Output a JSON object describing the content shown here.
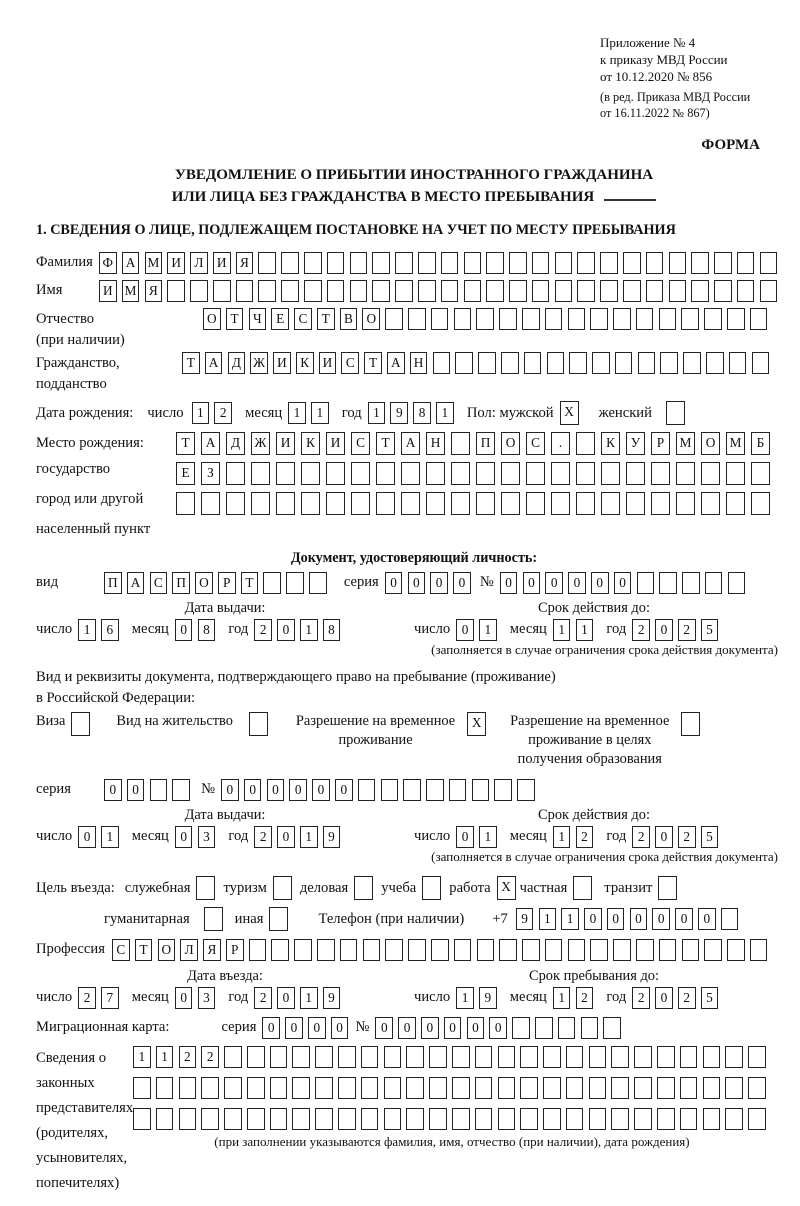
{
  "header": {
    "appendix_lines": [
      "Приложение № 4",
      "к приказу МВД России",
      "от 10.12.2020 № 856"
    ],
    "amendment_lines": [
      "(в ред. Приказа МВД России",
      "от 16.11.2022 № 867)"
    ],
    "form_label": "ФОРМА"
  },
  "title": {
    "line1": "УВЕДОМЛЕНИЕ О ПРИБЫТИИ ИНОСТРАННОГО ГРАЖДАНИНА",
    "line2": "ИЛИ ЛИЦА БЕЗ ГРАЖДАНСТВА В МЕСТО ПРЕБЫВАНИЯ"
  },
  "section1_heading": "1. СВЕДЕНИЯ О ЛИЦЕ, ПОДЛЕЖАЩЕМ ПОСТАНОВКЕ НА УЧЕТ ПО МЕСТУ ПРЕБЫВАНИЯ",
  "person": {
    "surname_label": "Фамилия",
    "surname": {
      "count": 30,
      "value": "ФАМИЛИЯ"
    },
    "name_label": "Имя",
    "name": {
      "count": 30,
      "value": "ИМЯ"
    },
    "patronymic_label": "Отчество",
    "patronymic_note": "(при наличии)",
    "patronymic": {
      "count": 25,
      "value": "ОТЧЕСТВО"
    },
    "citizenship_label_line1": "Гражданство,",
    "citizenship_label_line2": "подданство",
    "citizenship": {
      "count": 26,
      "value": "ТАДЖИКИСТАН"
    },
    "birth_date_label": "Дата рождения:",
    "birth_day": {
      "count": 2,
      "value": "12"
    },
    "birth_month": {
      "count": 2,
      "value": "11"
    },
    "birth_year": {
      "count": 4,
      "value": "1981"
    },
    "sex_male_label": "Пол: мужской",
    "sex_male": {
      "count": 1,
      "value": "X"
    },
    "sex_female_label": "женский",
    "sex_female": {
      "count": 1,
      "value": ""
    },
    "birthplace_label_lines": [
      "Место рождения:",
      "государство",
      "город или другой",
      "населенный пункт"
    ],
    "birthplace_rows": [
      {
        "count": 24,
        "value": "ТАДЖИКИСТАН ПОС. КУРМОМБ"
      },
      {
        "count": 24,
        "value": "ЕЗ"
      },
      {
        "count": 24,
        "value": ""
      }
    ]
  },
  "identity_doc": {
    "heading": "Документ, удостоверяющий личность:",
    "type_label": "вид",
    "type": {
      "count": 10,
      "value": "ПАСПОРТ"
    },
    "series_label": "серия",
    "series": {
      "count": 4,
      "value": "0000"
    },
    "number_label": "№",
    "number": {
      "count": 11,
      "value": "000000"
    }
  },
  "dates": {
    "day_label": "число",
    "month_label": "месяц",
    "year_label": "год",
    "issue_heading": "Дата выдачи:",
    "expiry_heading": "Срок действия до:",
    "entry_heading": "Дата въезда:",
    "stay_heading": "Срок пребывания до:",
    "restriction_note": "(заполняется в случае ограничения срока действия документа)",
    "passport_issue": {
      "day": {
        "count": 2,
        "value": "16"
      },
      "month": {
        "count": 2,
        "value": "08"
      },
      "year": {
        "count": 4,
        "value": "2018"
      }
    },
    "passport_expiry": {
      "day": {
        "count": 2,
        "value": "01"
      },
      "month": {
        "count": 2,
        "value": "11"
      },
      "year": {
        "count": 4,
        "value": "2025"
      }
    },
    "permit_issue": {
      "day": {
        "count": 2,
        "value": "01"
      },
      "month": {
        "count": 2,
        "value": "03"
      },
      "year": {
        "count": 4,
        "value": "2019"
      }
    },
    "permit_expiry": {
      "day": {
        "count": 2,
        "value": "01"
      },
      "month": {
        "count": 2,
        "value": "12"
      },
      "year": {
        "count": 4,
        "value": "2025"
      }
    },
    "entry_date": {
      "day": {
        "count": 2,
        "value": "27"
      },
      "month": {
        "count": 2,
        "value": "03"
      },
      "year": {
        "count": 4,
        "value": "2019"
      }
    },
    "stay_until": {
      "day": {
        "count": 2,
        "value": "19"
      },
      "month": {
        "count": 2,
        "value": "12"
      },
      "year": {
        "count": 4,
        "value": "2025"
      }
    }
  },
  "permit_doc": {
    "intro_line1": "Вид и реквизиты документа, подтверждающего право на пребывание (проживание)",
    "intro_line2": "в Российской Федерации:",
    "options": [
      {
        "label_lines": [
          "Виза"
        ],
        "box": {
          "count": 1,
          "value": ""
        }
      },
      {
        "label_lines": [
          "Вид на жительство"
        ],
        "box": {
          "count": 1,
          "value": ""
        }
      },
      {
        "label_lines": [
          "Разрешение на временное",
          "проживание"
        ],
        "box": {
          "count": 1,
          "value": "X"
        }
      },
      {
        "label_lines": [
          "Разрешение на временное",
          "проживание в целях",
          "получения образования"
        ],
        "box": {
          "count": 1,
          "value": ""
        }
      }
    ],
    "series_label": "серия",
    "series": {
      "count": 4,
      "value": "00"
    },
    "number_label": "№",
    "number": {
      "count": 14,
      "value": "000000"
    }
  },
  "visit": {
    "purpose_heading": "Цель въезда:",
    "purposes": [
      {
        "label": "служебная",
        "box": {
          "count": 1,
          "value": ""
        }
      },
      {
        "label": "туризм",
        "box": {
          "count": 1,
          "value": ""
        }
      },
      {
        "label": "деловая",
        "box": {
          "count": 1,
          "value": ""
        }
      },
      {
        "label": "учеба",
        "box": {
          "count": 1,
          "value": ""
        }
      },
      {
        "label": "работа",
        "box": {
          "count": 1,
          "value": "X"
        }
      },
      {
        "label": "частная",
        "box": {
          "count": 1,
          "value": ""
        }
      },
      {
        "label": "транзит",
        "box": {
          "count": 1,
          "value": ""
        }
      }
    ],
    "purposes2": [
      {
        "label": "гуманитарная",
        "box": {
          "count": 1,
          "value": ""
        }
      },
      {
        "label": "иная",
        "box": {
          "count": 1,
          "value": ""
        }
      }
    ],
    "phone_label": "Телефон (при наличии)",
    "phone_prefix": "+7",
    "phone": {
      "count": 10,
      "value": "911000000"
    },
    "profession_label": "Профессия",
    "profession": {
      "count": 29,
      "value": "СТОЛЯР"
    }
  },
  "migration_card": {
    "label": "Миграционная карта:",
    "series_label": "серия",
    "series": {
      "count": 4,
      "value": "0000"
    },
    "number_label": "№",
    "number": {
      "count": 11,
      "value": "000000"
    }
  },
  "representatives": {
    "label_lines": [
      "Сведения о",
      "законных",
      "представителях",
      "(родителях,",
      "усыновителях,",
      "попечителях)"
    ],
    "rows": [
      {
        "count": 28,
        "value": "1122"
      },
      {
        "count": 28,
        "value": ""
      },
      {
        "count": 28,
        "value": ""
      }
    ],
    "note": "(при заполнении указываются фамилия, имя, отчество (при наличии), дата рождения)"
  }
}
